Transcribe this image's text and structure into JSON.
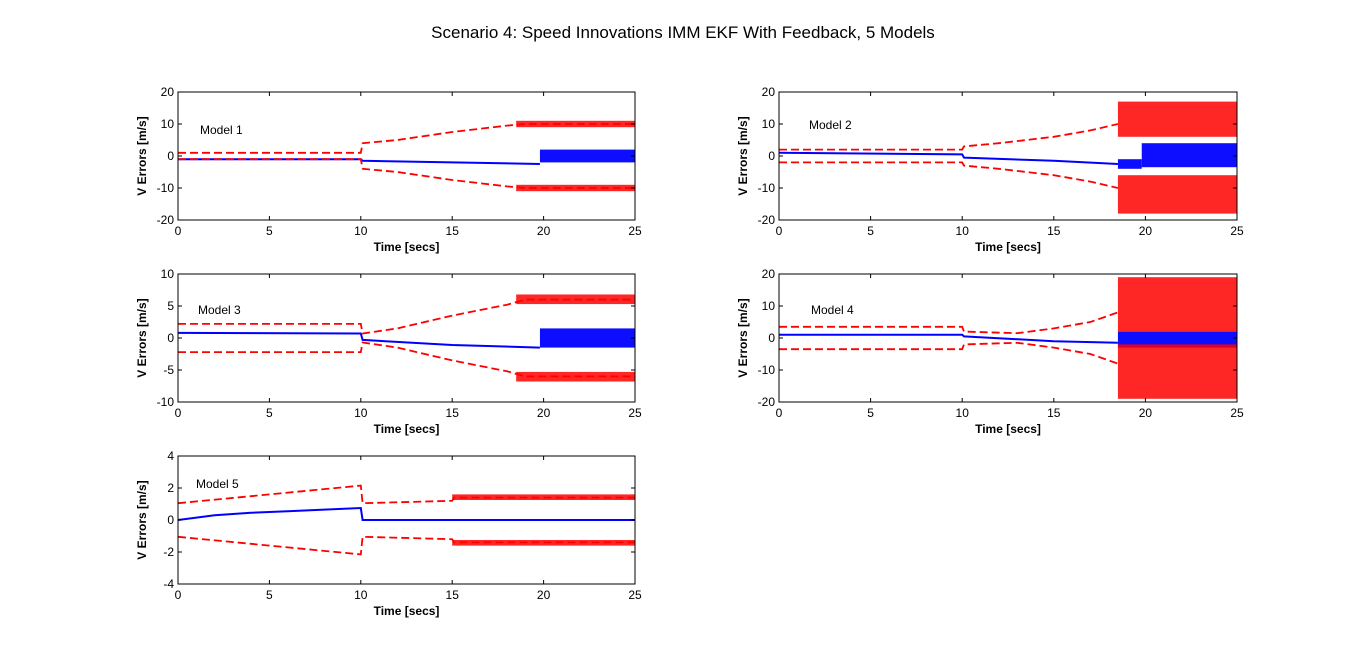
{
  "figure_title": "Scenario 4: Speed Innovations IMM EKF With Feedback, 5 Models",
  "colors": {
    "innovation": "#0000ff",
    "bounds": "#ff0000",
    "axes": "#000000",
    "background": "#ffffff"
  },
  "chart_data": [
    {
      "type": "line",
      "annotation": "Model  1",
      "xlabel": "Time [secs]",
      "ylabel": "V Errors [m/s]",
      "xlim": [
        0,
        25
      ],
      "ylim": [
        -20,
        20
      ],
      "xticks": [
        "0",
        "5",
        "10",
        "15",
        "20",
        "25"
      ],
      "yticks": [
        "20",
        "10",
        "0",
        "-10",
        "-20"
      ],
      "grid": false,
      "series": [
        {
          "role": "innovation",
          "style": "solid",
          "color": "#0000ff",
          "x": [
            0,
            10,
            10.1,
            15,
            19.8
          ],
          "y": [
            -1,
            -1,
            -1.5,
            -2,
            -2.5
          ],
          "band": {
            "x": [
              19.8,
              25
            ],
            "low": -2,
            "high": 2
          }
        },
        {
          "role": "upper-bound",
          "style": "dashed",
          "color": "#ff0000",
          "x": [
            0,
            10,
            10.1,
            12,
            15,
            18,
            19,
            25
          ],
          "y": [
            1,
            1,
            4,
            5,
            7.5,
            9.5,
            10,
            10
          ],
          "band": {
            "x": [
              18.5,
              25
            ],
            "low": 9,
            "high": 11
          }
        },
        {
          "role": "lower-bound",
          "style": "dashed",
          "color": "#ff0000",
          "x": [
            0,
            10,
            10.1,
            12,
            15,
            18,
            19,
            25
          ],
          "y": [
            -1,
            -1,
            -4,
            -5,
            -7.5,
            -9.5,
            -10,
            -10
          ],
          "band": {
            "x": [
              18.5,
              25
            ],
            "low": -11,
            "high": -9
          }
        }
      ]
    },
    {
      "type": "line",
      "annotation": "Model  2",
      "xlabel": "Time [secs]",
      "ylabel": "V Errors [m/s]",
      "xlim": [
        0,
        25
      ],
      "ylim": [
        -20,
        20
      ],
      "xticks": [
        "0",
        "5",
        "10",
        "15",
        "20",
        "25"
      ],
      "yticks": [
        "20",
        "10",
        "0",
        "-10",
        "-20"
      ],
      "grid": false,
      "series": [
        {
          "role": "innovation",
          "style": "solid",
          "color": "#0000ff",
          "x": [
            0,
            10,
            10.1,
            15,
            18.5
          ],
          "y": [
            1,
            0.5,
            -0.5,
            -1.5,
            -2.5
          ],
          "band": {
            "x": [
              18.5,
              19.8
            ],
            "low": -4,
            "high": -1,
            "band2": true
          },
          "band_wide": {
            "x": [
              19.8,
              25
            ],
            "low": -3.5,
            "high": 4
          }
        },
        {
          "role": "upper-bound",
          "style": "dashed",
          "color": "#ff0000",
          "x": [
            0,
            10,
            10.1,
            12,
            15,
            17,
            18.5
          ],
          "y": [
            2,
            2,
            3,
            4,
            6,
            8,
            10
          ],
          "band": {
            "x": [
              18.5,
              25
            ],
            "low": 6,
            "high": 17
          }
        },
        {
          "role": "lower-bound",
          "style": "dashed",
          "color": "#ff0000",
          "x": [
            0,
            10,
            10.1,
            12,
            15,
            17,
            18.5
          ],
          "y": [
            -2,
            -2,
            -3,
            -4,
            -6,
            -8,
            -10
          ],
          "band": {
            "x": [
              18.5,
              25
            ],
            "low": -18,
            "high": -6
          }
        }
      ]
    },
    {
      "type": "line",
      "annotation": "Model  3",
      "xlabel": "Time [secs]",
      "ylabel": "V Errors [m/s]",
      "xlim": [
        0,
        25
      ],
      "ylim": [
        -10,
        10
      ],
      "xticks": [
        "0",
        "5",
        "10",
        "15",
        "20",
        "25"
      ],
      "yticks": [
        "10",
        "5",
        "0",
        "-5",
        "-10"
      ],
      "grid": false,
      "series": [
        {
          "role": "innovation",
          "style": "solid",
          "color": "#0000ff",
          "x": [
            0,
            10,
            10.1,
            15,
            19.8
          ],
          "y": [
            0.8,
            0.7,
            -0.3,
            -1.1,
            -1.5
          ],
          "band": {
            "x": [
              19.8,
              25
            ],
            "low": -1.5,
            "high": 1.5
          }
        },
        {
          "role": "upper-bound",
          "style": "dashed",
          "color": "#ff0000",
          "x": [
            0,
            10,
            10.1,
            12,
            15,
            18,
            19,
            25
          ],
          "y": [
            2.2,
            2.2,
            0.7,
            1.5,
            3.5,
            5.2,
            6,
            6
          ],
          "band": {
            "x": [
              18.5,
              25
            ],
            "low": 5.3,
            "high": 6.8
          }
        },
        {
          "role": "lower-bound",
          "style": "dashed",
          "color": "#ff0000",
          "x": [
            0,
            10,
            10.1,
            12,
            15,
            18,
            19,
            25
          ],
          "y": [
            -2.2,
            -2.2,
            -0.7,
            -1.5,
            -3.5,
            -5.2,
            -6,
            -6
          ],
          "band": {
            "x": [
              18.5,
              25
            ],
            "low": -6.8,
            "high": -5.3
          }
        }
      ]
    },
    {
      "type": "line",
      "annotation": "Model  4",
      "xlabel": "Time [secs]",
      "ylabel": "V Errors [m/s]",
      "xlim": [
        0,
        25
      ],
      "ylim": [
        -20,
        20
      ],
      "xticks": [
        "0",
        "5",
        "10",
        "15",
        "20",
        "25"
      ],
      "yticks": [
        "20",
        "10",
        "0",
        "-10",
        "-20"
      ],
      "grid": false,
      "series": [
        {
          "role": "innovation",
          "style": "solid",
          "color": "#0000ff",
          "x": [
            0,
            10,
            10.1,
            15,
            18.5
          ],
          "y": [
            1,
            1,
            0.5,
            -1,
            -1.5
          ],
          "band": {
            "x": [
              18.5,
              25
            ],
            "low": -3,
            "high": 2
          }
        },
        {
          "role": "upper-bound",
          "style": "dashed",
          "color": "#ff0000",
          "x": [
            0,
            10,
            10.1,
            13,
            15,
            17,
            18.5
          ],
          "y": [
            3.5,
            3.5,
            2,
            1.5,
            3,
            5,
            8
          ],
          "band": {
            "x": [
              18.5,
              25
            ],
            "low": 2,
            "high": 19
          }
        },
        {
          "role": "lower-bound",
          "style": "dashed",
          "color": "#ff0000",
          "x": [
            0,
            10,
            10.1,
            13,
            15,
            17,
            18.5
          ],
          "y": [
            -3.5,
            -3.5,
            -2,
            -1.5,
            -3,
            -5,
            -8
          ],
          "band": {
            "x": [
              18.5,
              25
            ],
            "low": -19,
            "high": -2
          }
        }
      ]
    },
    {
      "type": "line",
      "annotation": "Model  5",
      "xlabel": "Time [secs]",
      "ylabel": "V Errors [m/s]",
      "xlim": [
        0,
        25
      ],
      "ylim": [
        -4,
        4
      ],
      "xticks": [
        "0",
        "5",
        "10",
        "15",
        "20",
        "25"
      ],
      "yticks": [
        "4",
        "2",
        "0",
        "-2",
        "-4"
      ],
      "grid": false,
      "series": [
        {
          "role": "innovation",
          "style": "solid",
          "color": "#0000ff",
          "x": [
            0,
            2,
            4,
            6,
            8,
            10,
            10.1,
            25
          ],
          "y": [
            0,
            0.3,
            0.45,
            0.55,
            0.65,
            0.75,
            0,
            0
          ]
        },
        {
          "role": "upper-bound",
          "style": "dashed",
          "color": "#ff0000",
          "x": [
            0,
            10,
            10.1,
            15,
            15.1,
            25
          ],
          "y": [
            1.05,
            2.15,
            1.05,
            1.2,
            1.4,
            1.4
          ],
          "band": {
            "x": [
              15,
              25
            ],
            "low": 1.25,
            "high": 1.6
          }
        },
        {
          "role": "lower-bound",
          "style": "dashed",
          "color": "#ff0000",
          "x": [
            0,
            10,
            10.1,
            15,
            15.1,
            25
          ],
          "y": [
            -1.05,
            -2.15,
            -1.05,
            -1.2,
            -1.4,
            -1.4
          ],
          "band": {
            "x": [
              15,
              25
            ],
            "low": -1.6,
            "high": -1.25
          }
        }
      ]
    }
  ]
}
